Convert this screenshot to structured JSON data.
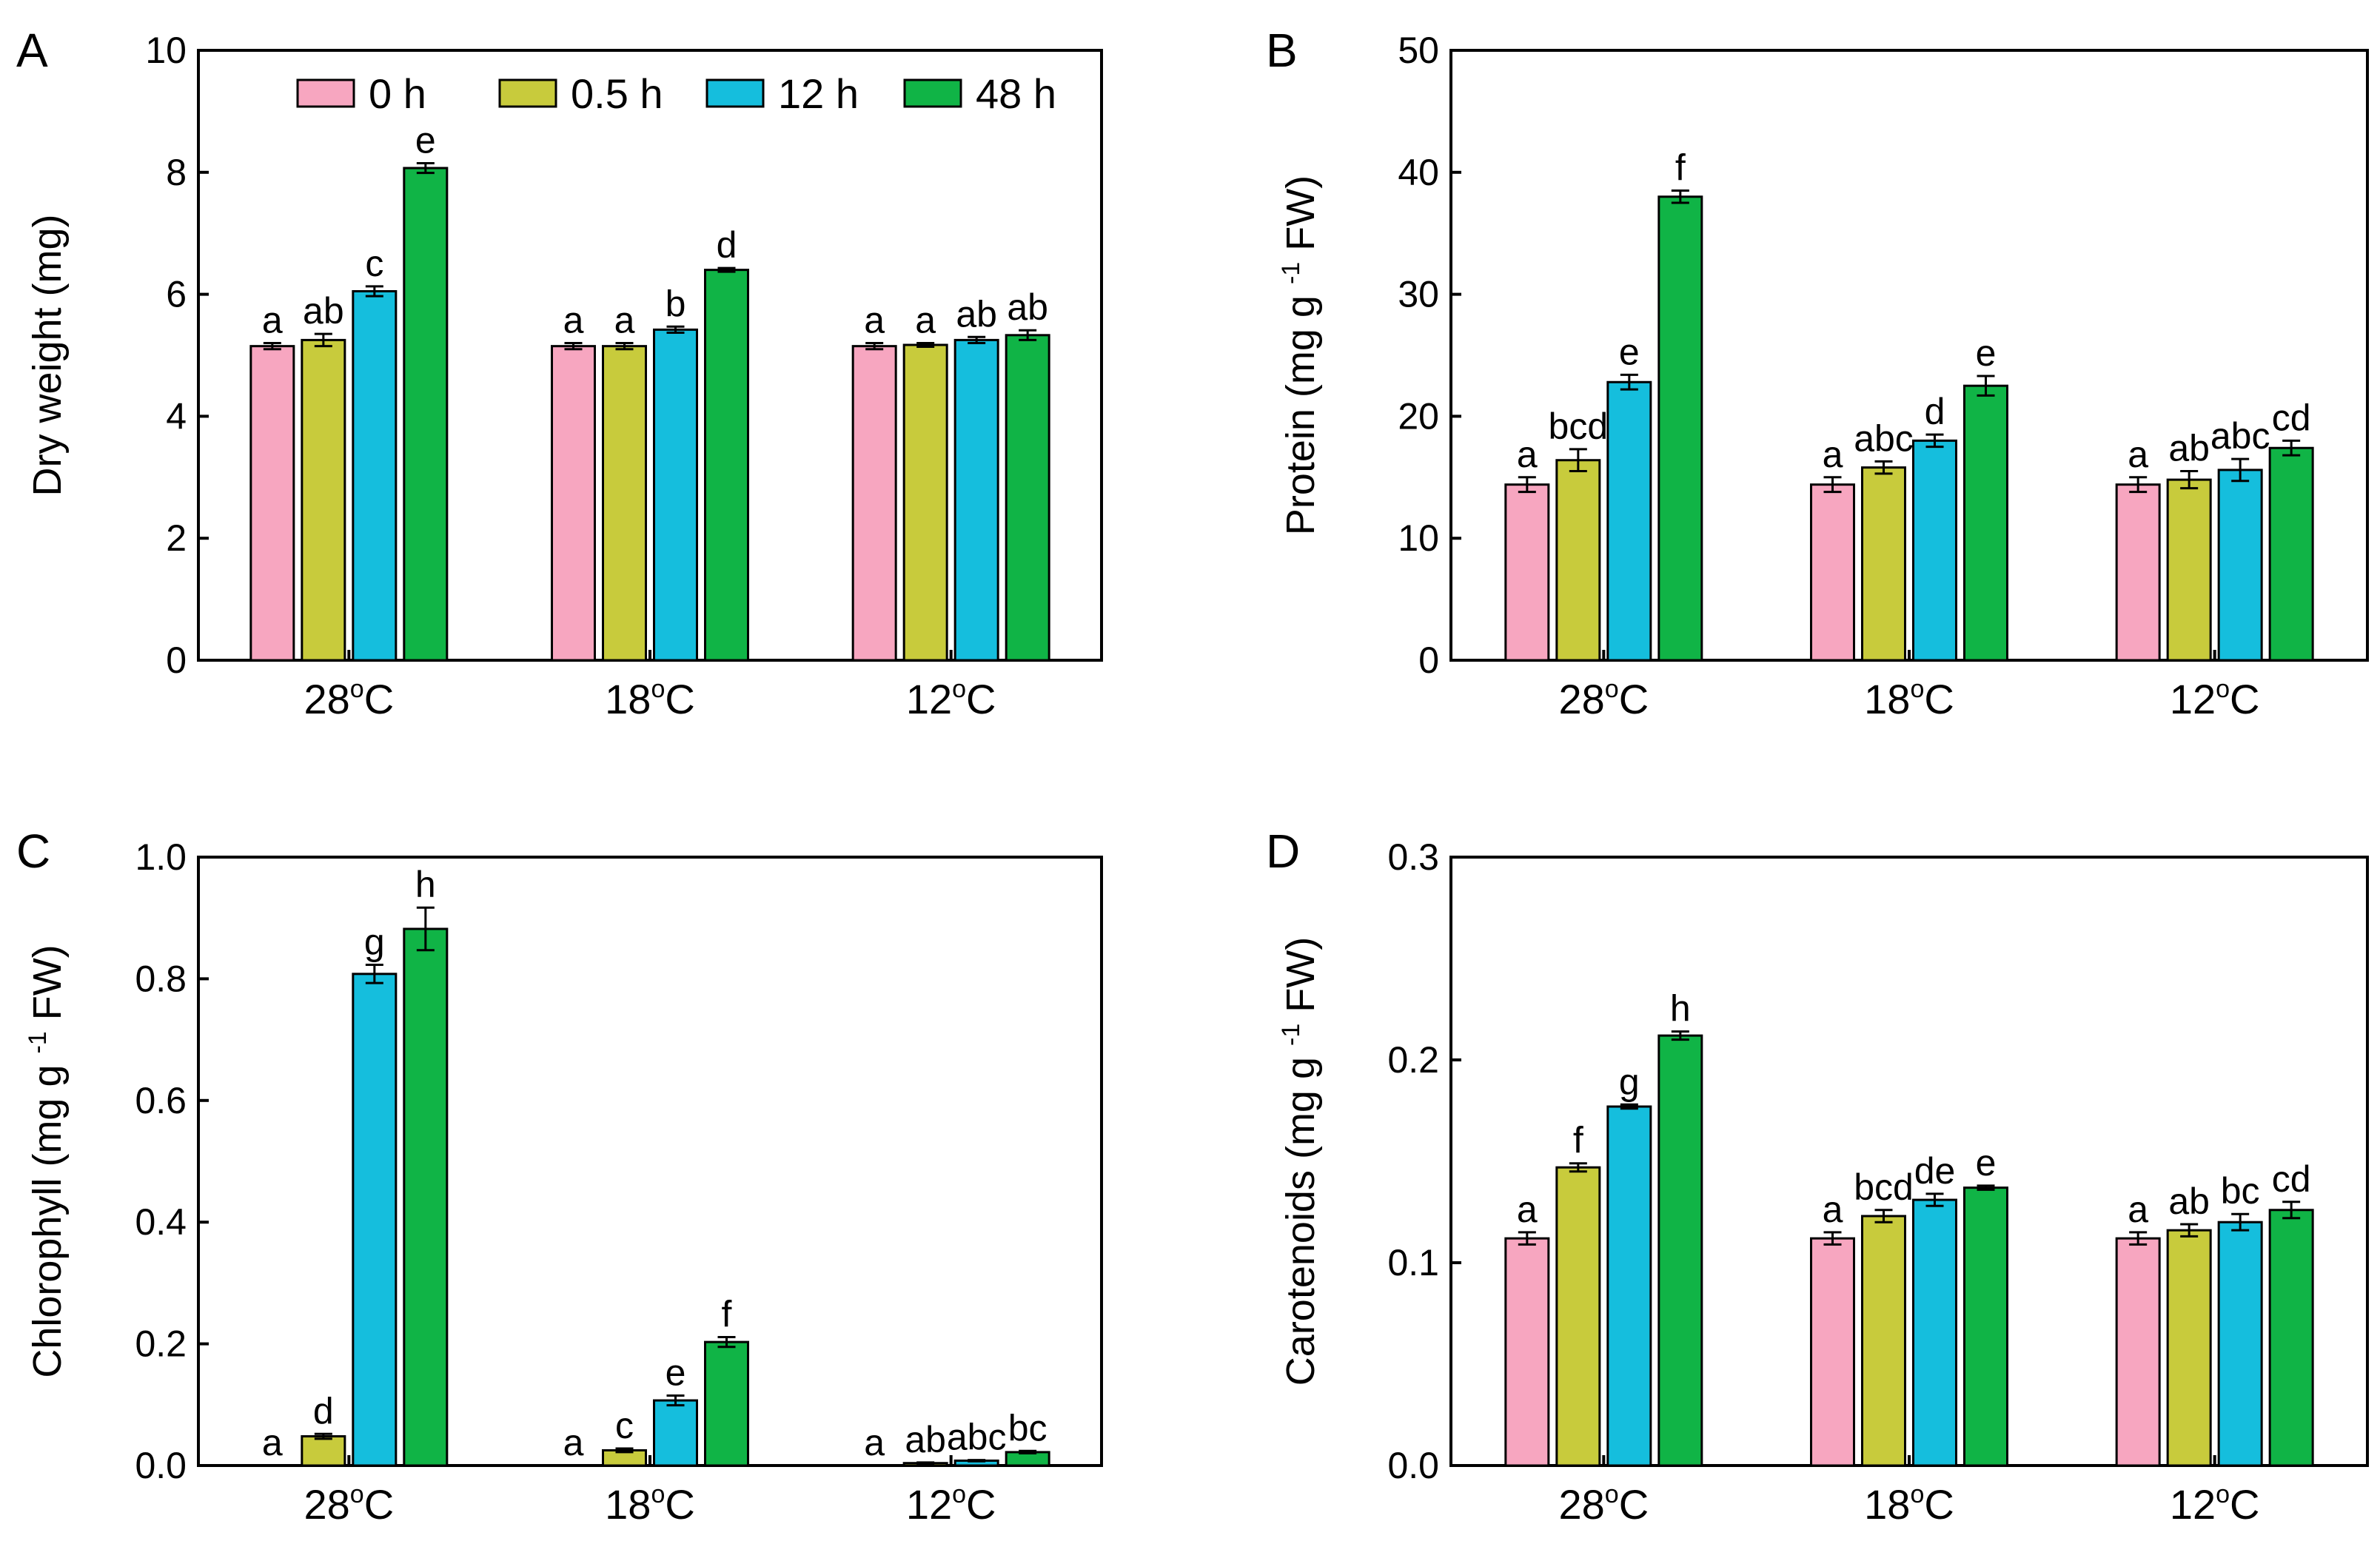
{
  "legend": {
    "entries": [
      {
        "label": "0 h",
        "color": "#F7A6C0"
      },
      {
        "label": "0.5 h",
        "color": "#C8CB3C"
      },
      {
        "label": "12 h",
        "color": "#15BEDD"
      },
      {
        "label": "48 h",
        "color": "#10B446"
      }
    ]
  },
  "chart_data": [
    {
      "panel": "A",
      "type": "bar",
      "ylabel": "Dry weight (mg)",
      "ylim": [
        0,
        10
      ],
      "yticks": [
        "0",
        "2",
        "4",
        "6",
        "8",
        "10"
      ],
      "categories": [
        "28°C",
        "18°C",
        "12°C"
      ],
      "series": [
        {
          "name": "0 h",
          "values": [
            5.15,
            5.15,
            5.15
          ],
          "errors": [
            0.05,
            0.05,
            0.05
          ],
          "letters": [
            "a",
            "a",
            "a"
          ]
        },
        {
          "name": "0.5 h",
          "values": [
            5.25,
            5.15,
            5.17
          ],
          "errors": [
            0.1,
            0.05,
            0.03
          ],
          "letters": [
            "ab",
            "a",
            "a"
          ]
        },
        {
          "name": "12 h",
          "values": [
            6.05,
            5.42,
            5.25
          ],
          "errors": [
            0.08,
            0.05,
            0.05
          ],
          "letters": [
            "c",
            "b",
            "ab"
          ]
        },
        {
          "name": "48 h",
          "values": [
            8.07,
            6.4,
            5.33
          ],
          "errors": [
            0.08,
            0.03,
            0.08
          ],
          "letters": [
            "e",
            "d",
            "ab"
          ]
        }
      ]
    },
    {
      "panel": "B",
      "type": "bar",
      "ylabel": "Protein (mg g-1 FW)",
      "ylim": [
        0,
        50
      ],
      "yticks": [
        "0",
        "10",
        "20",
        "30",
        "40",
        "50"
      ],
      "categories": [
        "28°C",
        "18°C",
        "12°C"
      ],
      "series": [
        {
          "name": "0 h",
          "values": [
            14.4,
            14.4,
            14.4
          ],
          "errors": [
            0.6,
            0.6,
            0.6
          ],
          "letters": [
            "a",
            "a",
            "a"
          ]
        },
        {
          "name": "0.5 h",
          "values": [
            16.4,
            15.8,
            14.8
          ],
          "errors": [
            0.9,
            0.5,
            0.7
          ],
          "letters": [
            "bcd",
            "abc",
            "ab"
          ]
        },
        {
          "name": "12 h",
          "values": [
            22.8,
            18.0,
            15.6
          ],
          "errors": [
            0.6,
            0.5,
            0.9
          ],
          "letters": [
            "e",
            "d",
            "abc"
          ]
        },
        {
          "name": "48 h",
          "values": [
            38.0,
            22.5,
            17.4
          ],
          "errors": [
            0.5,
            0.8,
            0.6
          ],
          "letters": [
            "f",
            "e",
            "cd"
          ]
        }
      ]
    },
    {
      "panel": "C",
      "type": "bar",
      "ylabel": "Chlorophyll (mg g-1 FW)",
      "ylim": [
        0,
        1.0
      ],
      "yticks": [
        "0.0",
        "0.2",
        "0.4",
        "0.6",
        "0.8",
        "1.0"
      ],
      "categories": [
        "28°C",
        "18°C",
        "12°C"
      ],
      "series": [
        {
          "name": "0 h",
          "values": [
            0.0,
            0.0,
            0.0
          ],
          "errors": [
            0.0,
            0.0,
            0.0
          ],
          "letters": [
            "a",
            "a",
            "a"
          ]
        },
        {
          "name": "0.5 h",
          "values": [
            0.048,
            0.025,
            0.004
          ],
          "errors": [
            0.004,
            0.003,
            0.001
          ],
          "letters": [
            "d",
            "c",
            "ab"
          ]
        },
        {
          "name": "12 h",
          "values": [
            0.808,
            0.107,
            0.008
          ],
          "errors": [
            0.015,
            0.008,
            0.001
          ],
          "letters": [
            "g",
            "e",
            "abc"
          ]
        },
        {
          "name": "48 h",
          "values": [
            0.882,
            0.203,
            0.022
          ],
          "errors": [
            0.035,
            0.008,
            0.002
          ],
          "letters": [
            "h",
            "f",
            "bc"
          ]
        }
      ]
    },
    {
      "panel": "D",
      "type": "bar",
      "ylabel": "Carotenoids (mg g-1 FW)",
      "ylim": [
        0,
        0.3
      ],
      "yticks": [
        "0.0",
        "0.1",
        "0.2",
        "0.3"
      ],
      "categories": [
        "28°C",
        "18°C",
        "12°C"
      ],
      "series": [
        {
          "name": "0 h",
          "values": [
            0.112,
            0.112,
            0.112
          ],
          "errors": [
            0.003,
            0.003,
            0.003
          ],
          "letters": [
            "a",
            "a",
            "a"
          ]
        },
        {
          "name": "0.5 h",
          "values": [
            0.147,
            0.123,
            0.116
          ],
          "errors": [
            0.002,
            0.003,
            0.003
          ],
          "letters": [
            "f",
            "bcd",
            "ab"
          ]
        },
        {
          "name": "12 h",
          "values": [
            0.177,
            0.131,
            0.12
          ],
          "errors": [
            0.001,
            0.003,
            0.004
          ],
          "letters": [
            "g",
            "de",
            "bc"
          ]
        },
        {
          "name": "48 h",
          "values": [
            0.212,
            0.137,
            0.126
          ],
          "errors": [
            0.002,
            0.001,
            0.004
          ],
          "letters": [
            "h",
            "e",
            "cd"
          ]
        }
      ]
    }
  ]
}
